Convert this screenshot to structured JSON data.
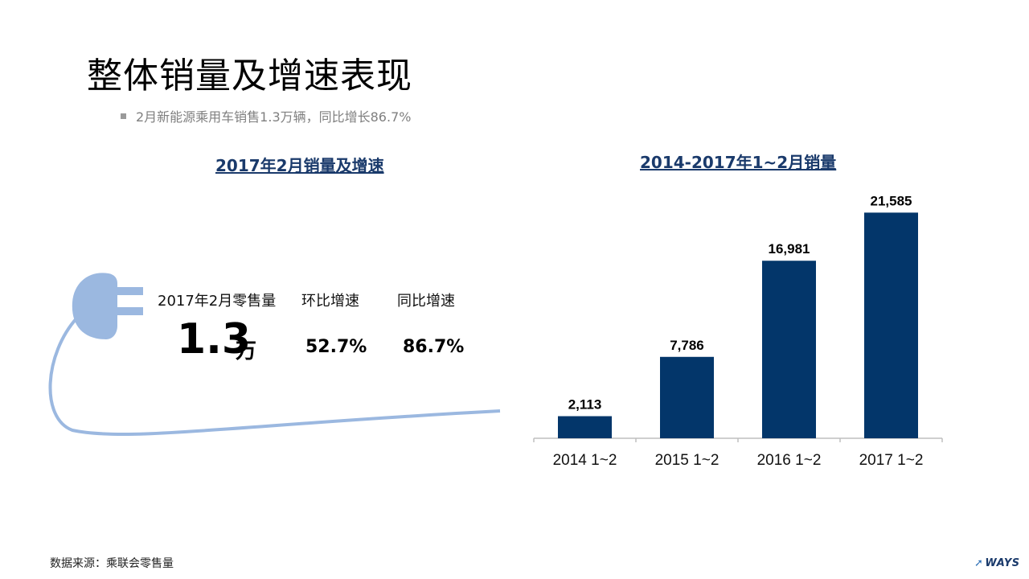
{
  "header": {
    "title": "整体销量及增速表现",
    "bullet": "2月新能源乘用车销售1.3万辆，同比增长86.7%"
  },
  "left_panel": {
    "subtitle": "2017年2月销量及增速",
    "metrics": [
      {
        "label": "2017年2月零售量",
        "value": "1.3",
        "unit": "万"
      },
      {
        "label": "环比增速",
        "value": "52.7%"
      },
      {
        "label": "同比增速",
        "value": "86.7%"
      }
    ],
    "plug_color": "#9bb8e0"
  },
  "chart_data": {
    "type": "bar",
    "title": "2014-2017年1~2月销量",
    "categories": [
      "2014 1~2",
      "2015 1~2",
      "2016 1~2",
      "2017 1~2"
    ],
    "values": [
      2113,
      7786,
      16981,
      21585
    ],
    "value_labels": [
      "2,113",
      "7,786",
      "16,981",
      "21,585"
    ],
    "ylim": [
      0,
      25000
    ],
    "grid": false,
    "bar_color": "#03366a"
  },
  "footer": {
    "source": "数据来源：乘联会零售量",
    "logo": "WAYS"
  }
}
